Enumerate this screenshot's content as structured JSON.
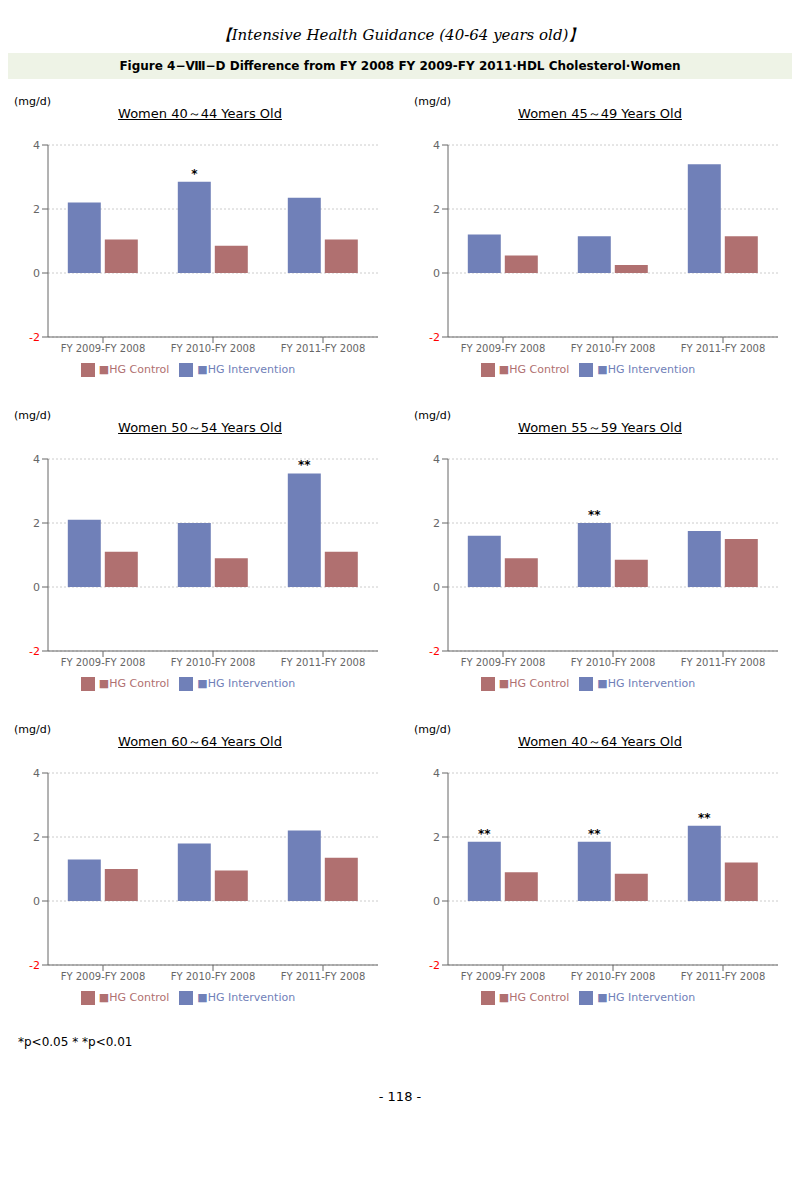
{
  "title": "【Intensive Health Guidance  (40-64 years old)】",
  "subtitle": "Figure 4−Ⅷ−D  Difference  from FY  2008  FY  2009-FY  2011·HDL  Cholesterol·Women",
  "annotations": [
    "*p<0.05   * *p<0.01",
    "- 118 -"
  ],
  "chart_data": [
    {
      "type": "bar",
      "title": "Women 40～44 Years Old",
      "y_label": "(mg/d)",
      "categories": [
        "FY 2009-FY 2008",
        "FY 2010-FY 2008",
        "FY 2011-FY 2008"
      ],
      "series": [
        {
          "name": "■HG Intervention",
          "color": "#7080b8",
          "values": [
            2.2,
            2.85,
            2.35
          ]
        },
        {
          "name": "■HG Control",
          "color": "#b07070",
          "values": [
            1.05,
            0.85,
            1.05
          ]
        }
      ],
      "annotations": [
        {
          "series": "■HG Intervention",
          "category": "FY 2010-FY 2008",
          "text": "*"
        }
      ],
      "ylim": [
        -2,
        4
      ],
      "yticks": [
        -2,
        0,
        2,
        4
      ],
      "grid": true,
      "legend": "bottom"
    },
    {
      "type": "bar",
      "title": "Women 45～49 Years Old",
      "y_label": "(mg/d)",
      "categories": [
        "FY 2009-FY 2008",
        "FY 2010-FY 2008",
        "FY 2011-FY 2008"
      ],
      "series": [
        {
          "name": "■HG Intervention",
          "color": "#7080b8",
          "values": [
            1.2,
            1.15,
            3.4
          ]
        },
        {
          "name": "■HG Control",
          "color": "#b07070",
          "values": [
            0.55,
            0.25,
            1.15
          ]
        }
      ],
      "annotations": [],
      "ylim": [
        -2,
        4
      ],
      "yticks": [
        -2,
        0,
        2,
        4
      ],
      "grid": true,
      "legend": "bottom"
    },
    {
      "type": "bar",
      "title": "Women 50～54 Years Old",
      "y_label": "(mg/d)",
      "categories": [
        "FY 2009-FY 2008",
        "FY 2010-FY 2008",
        "FY 2011-FY 2008"
      ],
      "series": [
        {
          "name": "■HG Intervention",
          "color": "#7080b8",
          "values": [
            2.1,
            2.0,
            3.55
          ]
        },
        {
          "name": "■HG Control",
          "color": "#b07070",
          "values": [
            1.1,
            0.9,
            1.1
          ]
        }
      ],
      "annotations": [
        {
          "series": "■HG Intervention",
          "category": "FY 2011-FY 2008",
          "text": "**"
        }
      ],
      "ylim": [
        -2,
        4
      ],
      "yticks": [
        -2,
        0,
        2,
        4
      ],
      "grid": true,
      "legend": "bottom"
    },
    {
      "type": "bar",
      "title": "Women 55～59 Years Old",
      "y_label": "(mg/d)",
      "categories": [
        "FY 2009-FY 2008",
        "FY 2010-FY 2008",
        "FY 2011-FY 2008"
      ],
      "series": [
        {
          "name": "■HG Intervention",
          "color": "#7080b8",
          "values": [
            1.6,
            2.0,
            1.75
          ]
        },
        {
          "name": "■HG Control",
          "color": "#b07070",
          "values": [
            0.9,
            0.85,
            1.5
          ]
        }
      ],
      "annotations": [
        {
          "series": "■HG Intervention",
          "category": "FY 2010-FY 2008",
          "text": "**"
        }
      ],
      "ylim": [
        -2,
        4
      ],
      "yticks": [
        -2,
        0,
        2,
        4
      ],
      "grid": true,
      "legend": "bottom"
    },
    {
      "type": "bar",
      "title": "Women 60～64 Years Old",
      "y_label": "(mg/d)",
      "categories": [
        "FY 2009-FY 2008",
        "FY 2010-FY 2008",
        "FY 2011-FY 2008"
      ],
      "series": [
        {
          "name": "■HG Intervention",
          "color": "#7080b8",
          "values": [
            1.3,
            1.8,
            2.2
          ]
        },
        {
          "name": "■HG Control",
          "color": "#b07070",
          "values": [
            1.0,
            0.95,
            1.35
          ]
        }
      ],
      "annotations": [],
      "ylim": [
        -2,
        4
      ],
      "yticks": [
        -2,
        0,
        2,
        4
      ],
      "grid": true,
      "legend": "bottom"
    },
    {
      "type": "bar",
      "title": "Women 40～64 Years Old",
      "y_label": "(mg/d)",
      "categories": [
        "FY 2009-FY 2008",
        "FY 2010-FY 2008",
        "FY 2011-FY 2008"
      ],
      "series": [
        {
          "name": "■HG Intervention",
          "color": "#7080b8",
          "values": [
            1.85,
            1.85,
            2.35
          ]
        },
        {
          "name": "■HG Control",
          "color": "#b07070",
          "values": [
            0.9,
            0.85,
            1.2
          ]
        }
      ],
      "annotations": [
        {
          "series": "■HG Intervention",
          "category": "FY 2009-FY 2008",
          "text": "**"
        },
        {
          "series": "■HG Intervention",
          "category": "FY 2010-FY 2008",
          "text": "**"
        },
        {
          "series": "■HG Intervention",
          "category": "FY 2011-FY 2008",
          "text": "**"
        }
      ],
      "ylim": [
        -2,
        4
      ],
      "yticks": [
        -2,
        0,
        2,
        4
      ],
      "grid": true,
      "legend": "bottom"
    }
  ]
}
